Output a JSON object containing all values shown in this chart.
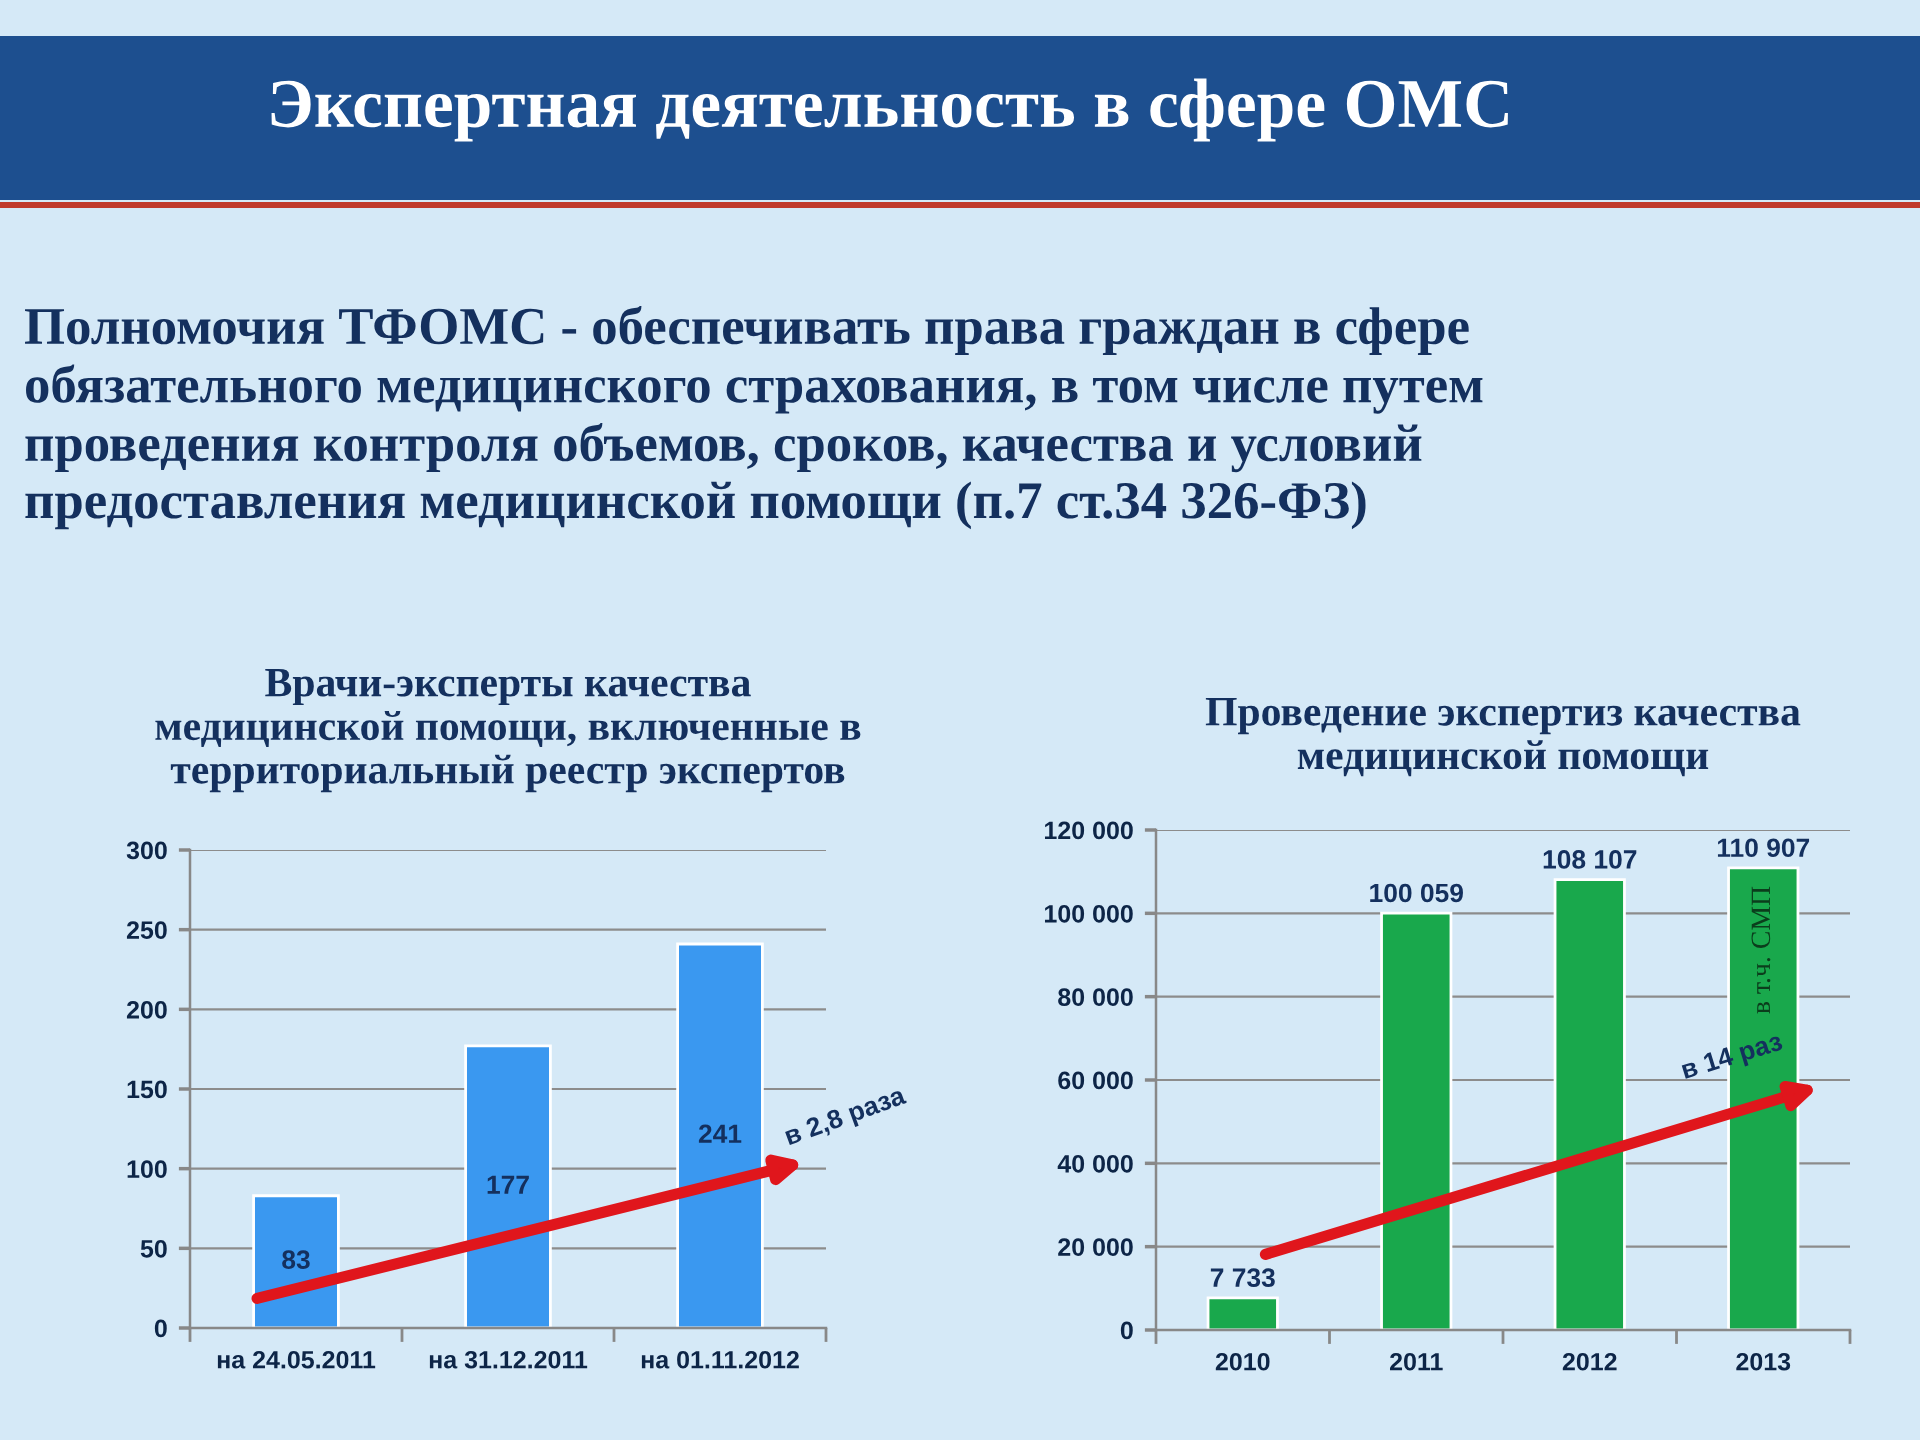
{
  "chart_data": [
    {
      "type": "other",
      "title": "Экспертная деятельность в сфере ОМС",
      "subtitle": "Полномочия ТФОМС - обеспечивать права граждан в сфере обязательного медицинского страхования, в том числе путем проведения контроля объемов, сроков, качества и условий предоставления медицинской помощи (п.7 ст.34 326-ФЗ)"
    },
    {
      "type": "bar",
      "title": "Врачи-эксперты качества медицинской помощи, включенные в территориальный реестр экспертов",
      "categories": [
        "на 24.05.2011",
        "на 31.12.2011",
        "на 01.11.2012"
      ],
      "values": [
        83,
        177,
        241
      ],
      "color": "#3a98f0",
      "ylim": [
        0,
        300
      ],
      "yticks": [
        0,
        50,
        100,
        150,
        200,
        250,
        300
      ],
      "grid": "y",
      "data_labels": true,
      "annotations": [
        "в 2,8 раза"
      ]
    },
    {
      "type": "bar",
      "title": "Проведение экспертиз качества медицинской помощи",
      "categories": [
        "2010",
        "2011",
        "2012",
        "2013"
      ],
      "values": [
        7733,
        100059,
        108107,
        110907
      ],
      "color": "#19a84c",
      "ylim": [
        0,
        120000
      ],
      "yticks": [
        {
          "value": 0,
          "label": "0"
        },
        {
          "value": 20000,
          "label": "20 000"
        },
        {
          "value": 40000,
          "label": "40 000"
        },
        {
          "value": 60000,
          "label": "60 000"
        },
        {
          "value": 80000,
          "label": "80 000"
        },
        {
          "value": 100000,
          "label": "100 000"
        },
        {
          "value": 120000,
          "label": "120 000"
        }
      ],
      "grid": "y",
      "value_labels": [
        "7 733",
        "100 059",
        "108 107",
        "110 907"
      ],
      "annotations": [
        "в 14 раз",
        "в т.ч. СМП"
      ]
    }
  ]
}
